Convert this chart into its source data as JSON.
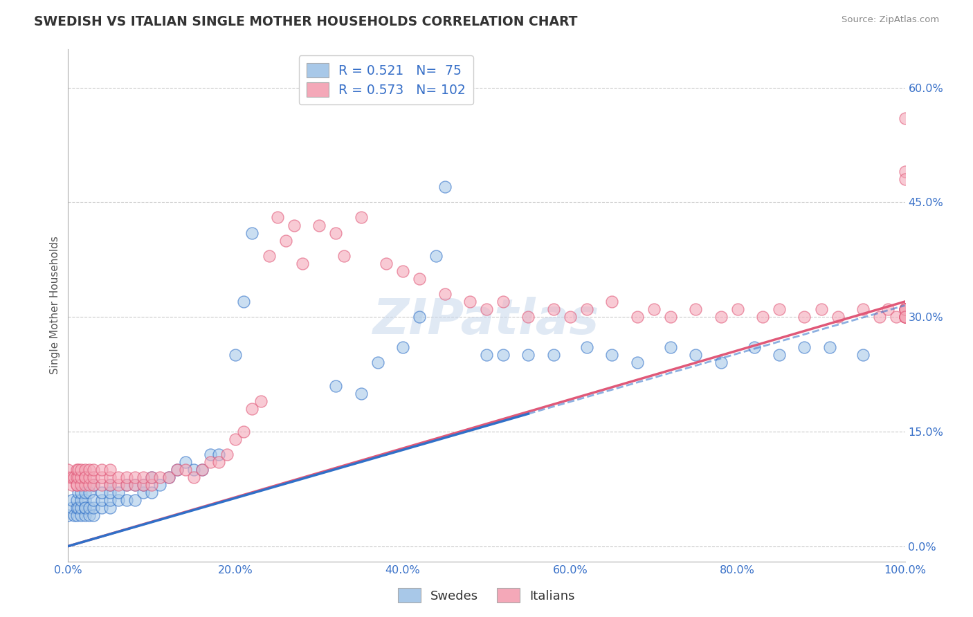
{
  "title": "SWEDISH VS ITALIAN SINGLE MOTHER HOUSEHOLDS CORRELATION CHART",
  "source": "Source: ZipAtlas.com",
  "ylabel": "Single Mother Households",
  "xlim": [
    0.0,
    1.0
  ],
  "ylim": [
    -0.02,
    0.65
  ],
  "swedes_R": 0.521,
  "swedes_N": 75,
  "italians_R": 0.573,
  "italians_N": 102,
  "swedes_color": "#a8c8e8",
  "italians_color": "#f4a8b8",
  "swedes_line_color": "#3070c8",
  "italians_line_color": "#e05878",
  "grid_color": "#cccccc",
  "title_color": "#333333",
  "watermark_color": "#c8d8ec",
  "sw_slope": 0.315,
  "sw_intercept": 0.0,
  "it_slope": 0.32,
  "it_intercept": 0.0,
  "sw_line_end_solid": 0.55,
  "sw_line_start_dash": 0.55,
  "sw_line_end_dash": 1.0,
  "sw_x": [
    0.0,
    0.005,
    0.005,
    0.007,
    0.01,
    0.01,
    0.01,
    0.012,
    0.012,
    0.015,
    0.015,
    0.015,
    0.015,
    0.02,
    0.02,
    0.02,
    0.02,
    0.02,
    0.025,
    0.025,
    0.025,
    0.03,
    0.03,
    0.03,
    0.03,
    0.04,
    0.04,
    0.04,
    0.05,
    0.05,
    0.05,
    0.05,
    0.06,
    0.06,
    0.07,
    0.07,
    0.08,
    0.08,
    0.09,
    0.09,
    0.1,
    0.1,
    0.11,
    0.12,
    0.13,
    0.14,
    0.15,
    0.16,
    0.17,
    0.18,
    0.2,
    0.21,
    0.22,
    0.32,
    0.35,
    0.37,
    0.4,
    0.42,
    0.44,
    0.45,
    0.5,
    0.52,
    0.55,
    0.58,
    0.62,
    0.65,
    0.68,
    0.72,
    0.75,
    0.78,
    0.82,
    0.85,
    0.88,
    0.91,
    0.95
  ],
  "sw_y": [
    0.04,
    0.05,
    0.06,
    0.04,
    0.04,
    0.05,
    0.06,
    0.05,
    0.07,
    0.04,
    0.05,
    0.06,
    0.07,
    0.04,
    0.05,
    0.06,
    0.07,
    0.05,
    0.04,
    0.05,
    0.07,
    0.04,
    0.05,
    0.06,
    0.08,
    0.05,
    0.06,
    0.07,
    0.05,
    0.06,
    0.07,
    0.08,
    0.06,
    0.07,
    0.06,
    0.08,
    0.06,
    0.08,
    0.07,
    0.08,
    0.07,
    0.09,
    0.08,
    0.09,
    0.1,
    0.11,
    0.1,
    0.1,
    0.12,
    0.12,
    0.25,
    0.32,
    0.41,
    0.21,
    0.2,
    0.24,
    0.26,
    0.3,
    0.38,
    0.47,
    0.25,
    0.25,
    0.25,
    0.25,
    0.26,
    0.25,
    0.24,
    0.26,
    0.25,
    0.24,
    0.26,
    0.25,
    0.26,
    0.26,
    0.25
  ],
  "it_x": [
    0.0,
    0.0,
    0.005,
    0.005,
    0.007,
    0.01,
    0.01,
    0.01,
    0.01,
    0.012,
    0.012,
    0.015,
    0.015,
    0.015,
    0.02,
    0.02,
    0.02,
    0.02,
    0.025,
    0.025,
    0.025,
    0.03,
    0.03,
    0.03,
    0.04,
    0.04,
    0.04,
    0.05,
    0.05,
    0.05,
    0.06,
    0.06,
    0.07,
    0.07,
    0.08,
    0.08,
    0.09,
    0.09,
    0.1,
    0.1,
    0.11,
    0.12,
    0.13,
    0.14,
    0.15,
    0.16,
    0.17,
    0.18,
    0.19,
    0.2,
    0.21,
    0.22,
    0.23,
    0.24,
    0.25,
    0.26,
    0.27,
    0.28,
    0.3,
    0.32,
    0.33,
    0.35,
    0.38,
    0.4,
    0.42,
    0.45,
    0.48,
    0.5,
    0.52,
    0.55,
    0.58,
    0.6,
    0.62,
    0.65,
    0.68,
    0.7,
    0.72,
    0.75,
    0.78,
    0.8,
    0.83,
    0.85,
    0.88,
    0.9,
    0.92,
    0.95,
    0.97,
    0.98,
    0.99,
    1.0,
    1.0,
    1.0,
    1.0,
    1.0,
    1.0,
    1.0,
    1.0,
    1.0,
    1.0,
    1.0,
    1.0,
    1.0
  ],
  "it_y": [
    0.09,
    0.1,
    0.08,
    0.09,
    0.09,
    0.08,
    0.09,
    0.1,
    0.08,
    0.09,
    0.1,
    0.08,
    0.09,
    0.1,
    0.08,
    0.09,
    0.1,
    0.09,
    0.08,
    0.09,
    0.1,
    0.08,
    0.09,
    0.1,
    0.08,
    0.09,
    0.1,
    0.08,
    0.09,
    0.1,
    0.08,
    0.09,
    0.08,
    0.09,
    0.08,
    0.09,
    0.08,
    0.09,
    0.08,
    0.09,
    0.09,
    0.09,
    0.1,
    0.1,
    0.09,
    0.1,
    0.11,
    0.11,
    0.12,
    0.14,
    0.15,
    0.18,
    0.19,
    0.38,
    0.43,
    0.4,
    0.42,
    0.37,
    0.42,
    0.41,
    0.38,
    0.43,
    0.37,
    0.36,
    0.35,
    0.33,
    0.32,
    0.31,
    0.32,
    0.3,
    0.31,
    0.3,
    0.31,
    0.32,
    0.3,
    0.31,
    0.3,
    0.31,
    0.3,
    0.31,
    0.3,
    0.31,
    0.3,
    0.31,
    0.3,
    0.31,
    0.3,
    0.31,
    0.3,
    0.31,
    0.3,
    0.31,
    0.3,
    0.31,
    0.3,
    0.31,
    0.3,
    0.31,
    0.3,
    0.56,
    0.49,
    0.48
  ]
}
